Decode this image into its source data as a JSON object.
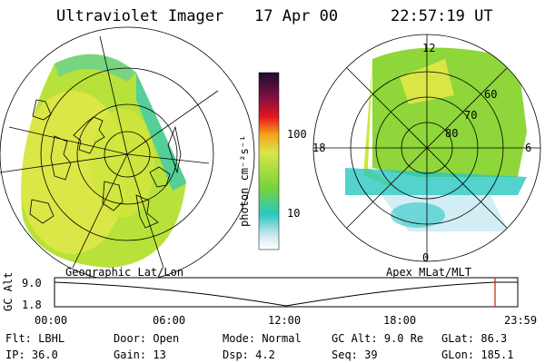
{
  "header": {
    "instrument": "Ultraviolet Imager",
    "date": "17 Apr 00",
    "time": "22:57:19 UT"
  },
  "left_map": {
    "caption": "Geographic Lat/Lon",
    "projection": "geographic"
  },
  "right_map": {
    "caption": "Apex MLat/MLT",
    "mlt_labels": {
      "top": "12",
      "left": "18",
      "right": "6",
      "bottom": "0"
    },
    "lat_rings": [
      "60",
      "70",
      "80"
    ]
  },
  "colorbar": {
    "unit_label": "photon cm⁻²s⁻¹",
    "ticks": [
      "100",
      "10"
    ]
  },
  "altitude_plot": {
    "axis_title": "GC Alt",
    "y_ticks": [
      "9.0",
      "1.8"
    ],
    "x_ticks": [
      "00:00",
      "06:00",
      "12:00",
      "18:00",
      "23:59"
    ],
    "current_marker": "22:57"
  },
  "status": {
    "row1": [
      {
        "label": "Flt:",
        "value": "LBHL"
      },
      {
        "label": "Door:",
        "value": "Open"
      },
      {
        "label": "Mode:",
        "value": "Normal"
      },
      {
        "label": "GC Alt:",
        "value": "9.0 Re"
      },
      {
        "label": "GLat:",
        "value": "86.3"
      }
    ],
    "row2": [
      {
        "label": "IP:",
        "value": "36.0"
      },
      {
        "label": "Gain:",
        "value": "13"
      },
      {
        "label": "Dsp:",
        "value": "4.2"
      },
      {
        "label": "Seq:",
        "value": "39"
      },
      {
        "label": "GLon:",
        "value": "185.1"
      }
    ]
  },
  "colors": {
    "accent_red": "#cc2200",
    "aurora_yellow": "#e4e84a",
    "aurora_green": "#9ad33a",
    "aurora_cyan": "#29c7c1"
  }
}
